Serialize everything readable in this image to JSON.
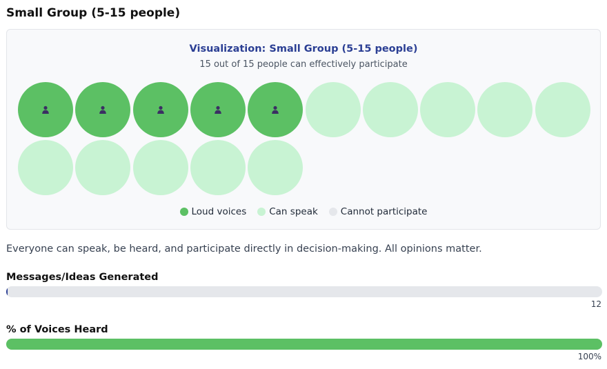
{
  "section": {
    "title": "Small Group (5-15 people)"
  },
  "visualization": {
    "title": "Visualization: Small Group (5-15 people)",
    "subtitle": "15 out of 15 people can effectively participate",
    "people": [
      {
        "status": "loud"
      },
      {
        "status": "loud"
      },
      {
        "status": "loud"
      },
      {
        "status": "loud"
      },
      {
        "status": "loud"
      },
      {
        "status": "speak"
      },
      {
        "status": "speak"
      },
      {
        "status": "speak"
      },
      {
        "status": "speak"
      },
      {
        "status": "speak"
      },
      {
        "status": "speak"
      },
      {
        "status": "speak"
      },
      {
        "status": "speak"
      },
      {
        "status": "speak"
      },
      {
        "status": "speak"
      }
    ],
    "person_icon": "person-icon",
    "legend": [
      {
        "label": "Loud voices",
        "status": "loud",
        "color": "#5cc064"
      },
      {
        "label": "Can speak",
        "status": "speak",
        "color": "#c8f3d3"
      },
      {
        "label": "Cannot participate",
        "status": "none",
        "color": "#e5e7eb"
      }
    ],
    "colors": {
      "loud": "#5cc064",
      "speak": "#c8f3d3",
      "none": "#e5e7eb",
      "icon": "#3b2f63",
      "title": "#2b3f94"
    }
  },
  "description": "Everyone can speak, be heard, and participate directly in decision-making. All opinions matter.",
  "metrics": [
    {
      "label": "Messages/Ideas Generated",
      "value_text": "12",
      "fill_fraction": 0.002,
      "color": "#2b3f94"
    },
    {
      "label": "% of Voices Heard",
      "value_text": "100%",
      "fill_fraction": 1.0,
      "color": "#5cc064"
    }
  ]
}
